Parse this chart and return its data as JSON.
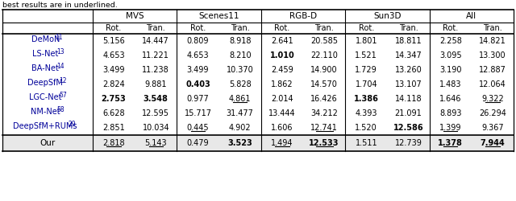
{
  "caption": "best results are in underlined.",
  "group_labels": [
    "MVS",
    "Scenes11",
    "RGB-D",
    "Sun3D",
    "All"
  ],
  "sub_labels": [
    "Rot.",
    "Tran.",
    "Rot.",
    "Tran.",
    "Rot.",
    "Tran.",
    "Rot.",
    "Tran.",
    "Rot.",
    "Tran."
  ],
  "rows": [
    {
      "name": "DeMoN",
      "superscript": "11",
      "values": [
        "5.156",
        "14.447",
        "0.809",
        "8.918",
        "2.641",
        "20.585",
        "1.801",
        "18.811",
        "2.258",
        "14.821"
      ],
      "bold": [],
      "underline": [],
      "name_color": "#000099"
    },
    {
      "name": "LS-Net",
      "superscript": "13",
      "values": [
        "4.653",
        "11.221",
        "4.653",
        "8.210",
        "1.010",
        "22.110",
        "1.521",
        "14.347",
        "3.095",
        "13.300"
      ],
      "bold": [
        4
      ],
      "underline": [],
      "name_color": "#000099"
    },
    {
      "name": "BA-Net",
      "superscript": "14",
      "values": [
        "3.499",
        "11.238",
        "3.499",
        "10.370",
        "2.459",
        "14.900",
        "1.729",
        "13.260",
        "3.190",
        "12.887"
      ],
      "bold": [],
      "underline": [],
      "name_color": "#000099"
    },
    {
      "name": "DeepSfM",
      "superscript": "12",
      "values": [
        "2.824",
        "9.881",
        "0.403",
        "5.828",
        "1.862",
        "14.570",
        "1.704",
        "13.107",
        "1.483",
        "12.064"
      ],
      "bold": [
        2
      ],
      "underline": [],
      "name_color": "#000099"
    },
    {
      "name": "LGC-Net",
      "superscript": "57",
      "values": [
        "2.753",
        "3.548",
        "0.977",
        "4.861",
        "2.014",
        "16.426",
        "1.386",
        "14.118",
        "1.646",
        "9.322"
      ],
      "bold": [
        0,
        1,
        6
      ],
      "underline": [
        3,
        9
      ],
      "name_color": "#000099"
    },
    {
      "name": "NM-Net",
      "superscript": "58",
      "values": [
        "6.628",
        "12.595",
        "15.717",
        "31.477",
        "13.444",
        "34.212",
        "4.393",
        "21.091",
        "8.893",
        "26.294"
      ],
      "bold": [],
      "underline": [],
      "name_color": "#000099"
    },
    {
      "name": "DeepSfM+RUMs",
      "superscript": "29",
      "values": [
        "2.851",
        "10.034",
        "0.445",
        "4.902",
        "1.606",
        "12.741",
        "1.520",
        "12.586",
        "1.399",
        "9.367"
      ],
      "bold": [
        7
      ],
      "underline": [
        2,
        5,
        8
      ],
      "name_color": "#000099"
    }
  ],
  "our_row": {
    "name": "Our",
    "values": [
      "2.818",
      "5.143",
      "0.479",
      "3.523",
      "1.494",
      "12.533",
      "1.511",
      "12.739",
      "1.378",
      "7.944"
    ],
    "bold": [
      3,
      5,
      8,
      9
    ],
    "underline": [
      0,
      1,
      4,
      5,
      8,
      9
    ],
    "name_color": "#000000"
  },
  "fontsize": 7.0,
  "header_fontsize": 7.5,
  "caption_fontsize": 6.8
}
